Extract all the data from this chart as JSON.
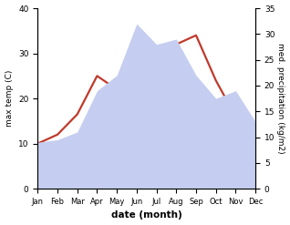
{
  "months": [
    "Jan",
    "Feb",
    "Mar",
    "Apr",
    "May",
    "Jun",
    "Jul",
    "Aug",
    "Sep",
    "Oct",
    "Nov",
    "Dec"
  ],
  "temp": [
    10.0,
    12.0,
    16.5,
    25.0,
    22.0,
    27.0,
    30.0,
    32.0,
    34.0,
    24.0,
    16.0,
    13.0
  ],
  "precip": [
    9.0,
    9.5,
    11.0,
    19.0,
    22.0,
    32.0,
    28.0,
    29.0,
    22.0,
    17.5,
    19.0,
    13.0
  ],
  "temp_color": "#c0392b",
  "precip_fill_color": "#c5cef0",
  "ylabel_left": "max temp (C)",
  "ylabel_right": "med. precipitation (kg/m2)",
  "xlabel": "date (month)",
  "ylim_left": [
    0,
    40
  ],
  "ylim_right": [
    0,
    35
  ],
  "yticks_left": [
    0,
    10,
    20,
    30,
    40
  ],
  "yticks_right": [
    0,
    5,
    10,
    15,
    20,
    25,
    30,
    35
  ],
  "bg_color": "#ffffff",
  "line_width": 1.6
}
